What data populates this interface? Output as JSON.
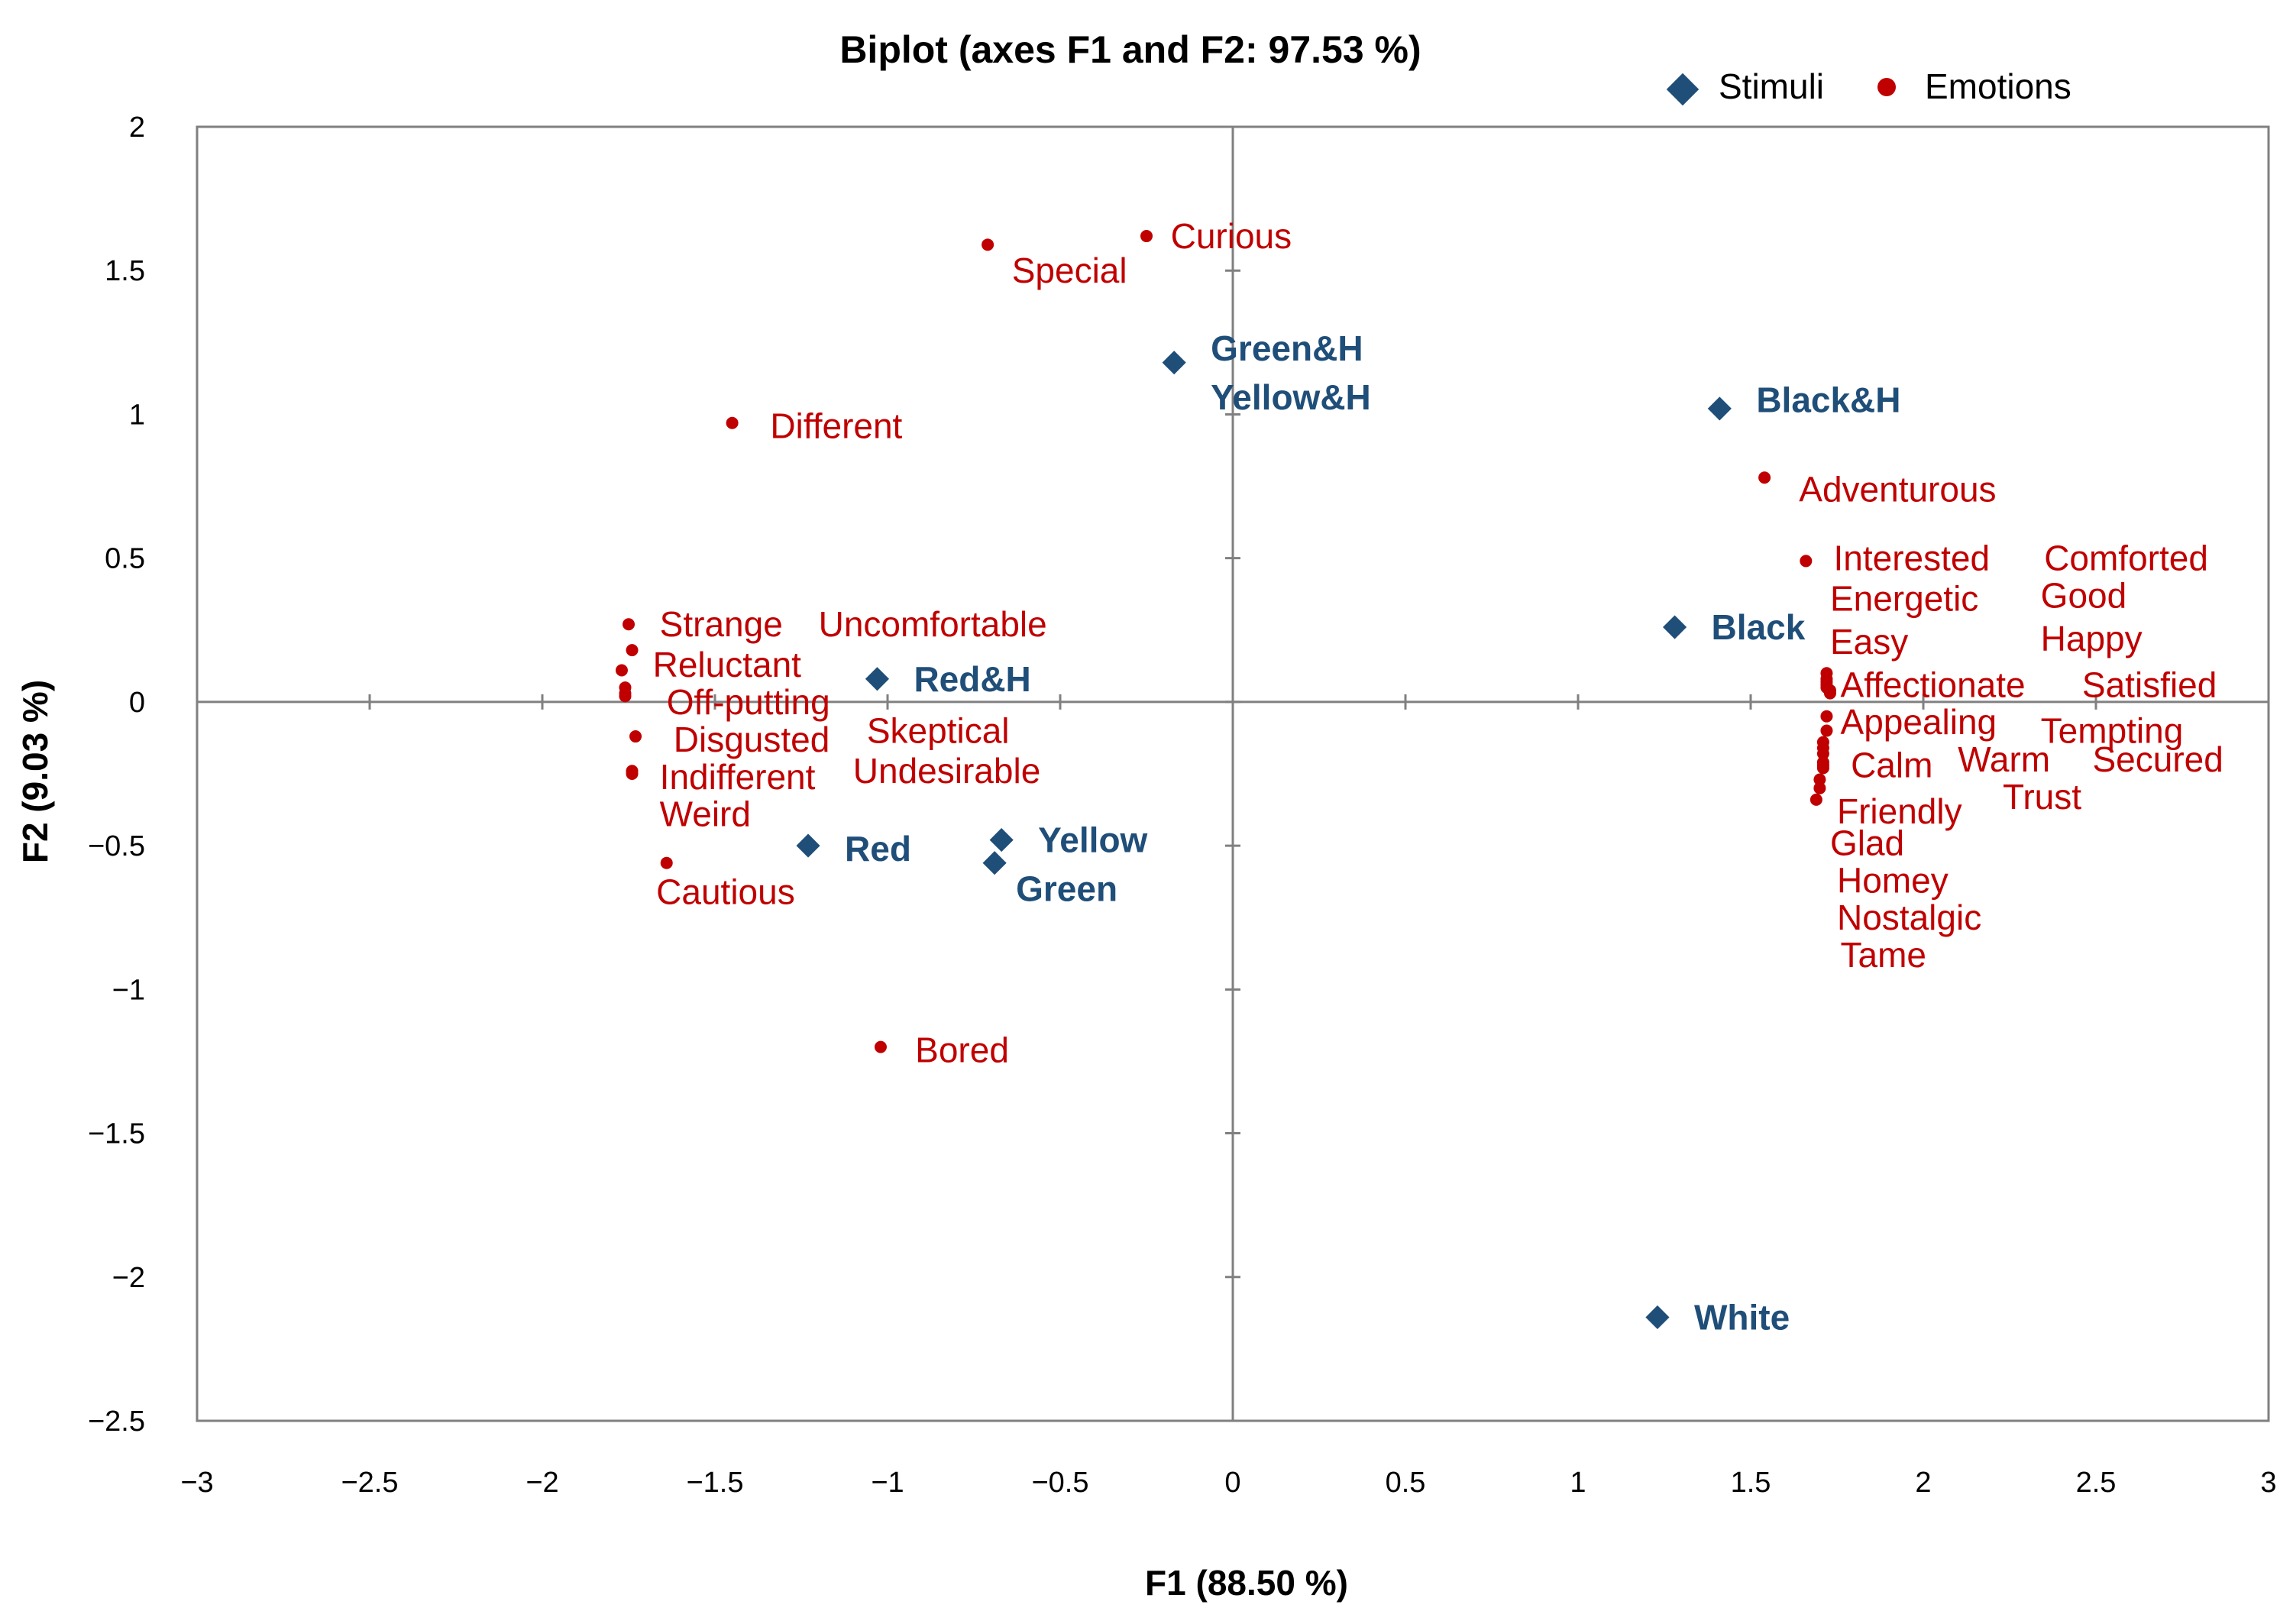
{
  "chart_data": {
    "type": "scatter",
    "title": "Biplot (axes F1 and F2: 97.53 %)",
    "xlabel": "F1 (88.50 %)",
    "ylabel": "F2 (9.03 %)",
    "xlim": [
      -3,
      3
    ],
    "ylim": [
      -2.5,
      2
    ],
    "xticks": [
      -3,
      -2.5,
      -2,
      -1.5,
      -1,
      -0.5,
      0,
      0.5,
      1,
      1.5,
      2,
      2.5,
      3
    ],
    "yticks": [
      -2.5,
      -2,
      -1.5,
      -1,
      -0.5,
      0,
      0.5,
      1,
      1.5,
      2
    ],
    "xtick_labels": [
      "−3",
      "−2.5",
      "−2",
      "−1.5",
      "−1",
      "−0.5",
      "0",
      "0.5",
      "1",
      "1.5",
      "2",
      "2.5",
      "3"
    ],
    "ytick_labels": [
      "−2.5",
      "−2",
      "−1.5",
      "−1",
      "−0.5",
      "0",
      "0.5",
      "1",
      "1.5",
      "2"
    ],
    "grid": false,
    "legend_position": "top-right",
    "colors": {
      "stimuli": "#1f4e79",
      "emotions": "#c00000",
      "axis": "#808080",
      "frame": "#808080",
      "text": "#000000"
    },
    "series": [
      {
        "name": "Stimuli",
        "marker": "diamond",
        "points": [
          {
            "x": -0.17,
            "y": 1.18,
            "label": "Yellow&H",
            "anchor": "right",
            "dy": -0.12
          },
          {
            "x": -0.17,
            "y": 1.18,
            "label": "Green&H",
            "anchor": "right",
            "dy": 0.05
          },
          {
            "x": 1.41,
            "y": 1.02,
            "label": "Black&H",
            "anchor": "right",
            "dy": 0.03
          },
          {
            "x": 1.28,
            "y": 0.26,
            "label": "Black",
            "anchor": "right",
            "dy": 0
          },
          {
            "x": -1.03,
            "y": 0.08,
            "label": "Red&H",
            "anchor": "right",
            "dy": 0
          },
          {
            "x": -1.23,
            "y": -0.5,
            "label": "Red",
            "anchor": "right",
            "dy": -0.01
          },
          {
            "x": -0.67,
            "y": -0.48,
            "label": "Yellow",
            "anchor": "right",
            "dy": 0
          },
          {
            "x": -0.69,
            "y": -0.56,
            "label": "Green",
            "anchor": "below",
            "dy": -0.09
          },
          {
            "x": 1.23,
            "y": -2.14,
            "label": "White",
            "anchor": "right",
            "dy": 0
          }
        ]
      },
      {
        "name": "Emotions",
        "marker": "circle",
        "points": [
          {
            "x": -0.71,
            "y": 1.59,
            "label": "Special",
            "tx": -0.64,
            "ty": 1.5
          },
          {
            "x": -0.25,
            "y": 1.62,
            "label": "Curious",
            "tx": -0.18,
            "ty": 1.62
          },
          {
            "x": -1.45,
            "y": 0.97,
            "label": "Different",
            "tx": -1.34,
            "ty": 0.96
          },
          {
            "x": 1.54,
            "y": 0.78,
            "label": "Adventurous",
            "tx": 1.64,
            "ty": 0.74
          },
          {
            "x": 1.66,
            "y": 0.49,
            "label": "Interested",
            "tx": 1.74,
            "ty": 0.5
          },
          {
            "x": 1.72,
            "y": 0.1,
            "label": "Comforted",
            "tx": 2.35,
            "ty": 0.5
          },
          {
            "x": 1.72,
            "y": 0.08,
            "label": "Energetic",
            "tx": 1.73,
            "ty": 0.36
          },
          {
            "x": 1.72,
            "y": 0.07,
            "label": "Good",
            "tx": 2.34,
            "ty": 0.37
          },
          {
            "x": 1.72,
            "y": 0.06,
            "label": "Easy",
            "tx": 1.73,
            "ty": 0.21
          },
          {
            "x": 1.72,
            "y": 0.05,
            "label": "Happy",
            "tx": 2.34,
            "ty": 0.22
          },
          {
            "x": 1.73,
            "y": 0.04,
            "label": "Affectionate",
            "tx": 1.76,
            "ty": 0.06
          },
          {
            "x": 1.73,
            "y": 0.03,
            "label": "Satisfied",
            "tx": 2.46,
            "ty": 0.06
          },
          {
            "x": 1.72,
            "y": -0.05,
            "label": "Appealing",
            "tx": 1.76,
            "ty": -0.07
          },
          {
            "x": 1.72,
            "y": -0.1,
            "label": "Tempting",
            "tx": 2.34,
            "ty": -0.1
          },
          {
            "x": 1.71,
            "y": -0.21,
            "label": "Calm",
            "tx": 1.79,
            "ty": -0.22
          },
          {
            "x": 1.71,
            "y": -0.22,
            "label": "Warm",
            "tx": 2.1,
            "ty": -0.2
          },
          {
            "x": 1.71,
            "y": -0.23,
            "label": "Secured",
            "tx": 2.49,
            "ty": -0.2
          },
          {
            "x": 1.7,
            "y": -0.27,
            "label": "Trust",
            "tx": 2.23,
            "ty": -0.33
          },
          {
            "x": 1.69,
            "y": -0.34,
            "label": "Friendly",
            "tx": 1.75,
            "ty": -0.38
          },
          {
            "x": 1.7,
            "y": -0.3,
            "label": "Glad",
            "tx": 1.73,
            "ty": -0.49
          },
          {
            "x": 1.71,
            "y": -0.18,
            "label": "Homey",
            "tx": 1.75,
            "ty": -0.62
          },
          {
            "x": 1.71,
            "y": -0.16,
            "label": "Nostalgic",
            "tx": 1.75,
            "ty": -0.75
          },
          {
            "x": 1.71,
            "y": -0.14,
            "label": "Tame",
            "tx": 1.76,
            "ty": -0.88
          },
          {
            "x": -1.75,
            "y": 0.27,
            "label": "Strange",
            "tx": -1.66,
            "ty": 0.27
          },
          {
            "x": -1.74,
            "y": 0.18,
            "label": "Reluctant",
            "tx": -1.68,
            "ty": 0.13
          },
          {
            "x": -1.76,
            "y": 0.05,
            "label": "Off-putting",
            "tx": -1.64,
            "ty": 0.0
          },
          {
            "x": -1.76,
            "y": 0.03,
            "label": "Uncomfortable",
            "tx": -1.2,
            "ty": 0.27
          },
          {
            "x": -1.77,
            "y": 0.11,
            "label": "Skeptical",
            "tx": -1.06,
            "ty": -0.1
          },
          {
            "x": -1.73,
            "y": -0.12,
            "label": "Disgusted",
            "tx": -1.62,
            "ty": -0.13
          },
          {
            "x": -1.74,
            "y": -0.25,
            "label": "Indifferent",
            "tx": -1.66,
            "ty": -0.26
          },
          {
            "x": -1.76,
            "y": 0.02,
            "label": "Undesirable",
            "tx": -1.1,
            "ty": -0.24
          },
          {
            "x": -1.74,
            "y": -0.24,
            "label": "Weird",
            "tx": -1.66,
            "ty": -0.39
          },
          {
            "x": -1.64,
            "y": -0.56,
            "label": "Cautious",
            "tx": -1.67,
            "ty": -0.66
          },
          {
            "x": -1.02,
            "y": -1.2,
            "label": "Bored",
            "tx": -0.92,
            "ty": -1.21
          }
        ]
      }
    ]
  }
}
